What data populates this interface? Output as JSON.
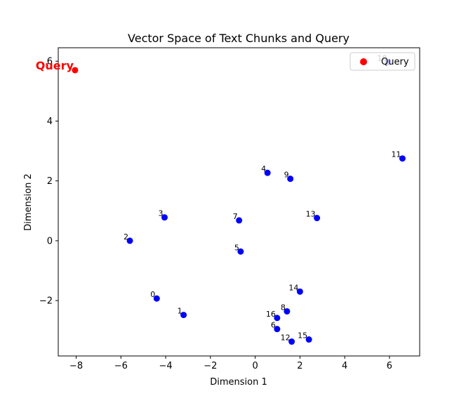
{
  "chart_data": {
    "type": "scatter",
    "title": "Vector Space of Text Chunks and Query",
    "xlabel": "Dimension 1",
    "ylabel": "Dimension 2",
    "xlim": [
      -8.8,
      7.35
    ],
    "ylim": [
      -3.85,
      6.45
    ],
    "xticks": [
      -8,
      -6,
      -4,
      -2,
      0,
      2,
      4,
      6
    ],
    "yticks": [
      -2,
      0,
      2,
      4,
      6
    ],
    "grid": false,
    "legend_position": "top-right",
    "series": [
      {
        "name": "",
        "color": "#0000ff",
        "points": [
          {
            "label": "0",
            "x": -4.4,
            "y": -1.93
          },
          {
            "label": "1",
            "x": -3.2,
            "y": -2.48
          },
          {
            "label": "2",
            "x": -5.6,
            "y": 0.0
          },
          {
            "label": "3",
            "x": -4.05,
            "y": 0.78
          },
          {
            "label": "4",
            "x": 0.55,
            "y": 2.27
          },
          {
            "label": "5",
            "x": -0.65,
            "y": -0.36
          },
          {
            "label": "6",
            "x": 0.98,
            "y": -2.95
          },
          {
            "label": "7",
            "x": -0.72,
            "y": 0.68
          },
          {
            "label": "8",
            "x": 1.42,
            "y": -2.36
          },
          {
            "label": "9",
            "x": 1.57,
            "y": 2.07
          },
          {
            "label": "10",
            "x": 5.95,
            "y": 5.97
          },
          {
            "label": "11",
            "x": 6.58,
            "y": 2.75
          },
          {
            "label": "12",
            "x": 1.63,
            "y": -3.37
          },
          {
            "label": "13",
            "x": 2.76,
            "y": 0.76
          },
          {
            "label": "14",
            "x": 2.0,
            "y": -1.7
          },
          {
            "label": "15",
            "x": 2.4,
            "y": -3.3
          },
          {
            "label": "16",
            "x": 0.98,
            "y": -2.58
          }
        ]
      },
      {
        "name": "Query",
        "color": "#ff0000",
        "points": [
          {
            "label": "Query",
            "x": -8.05,
            "y": 5.7
          }
        ]
      }
    ]
  }
}
